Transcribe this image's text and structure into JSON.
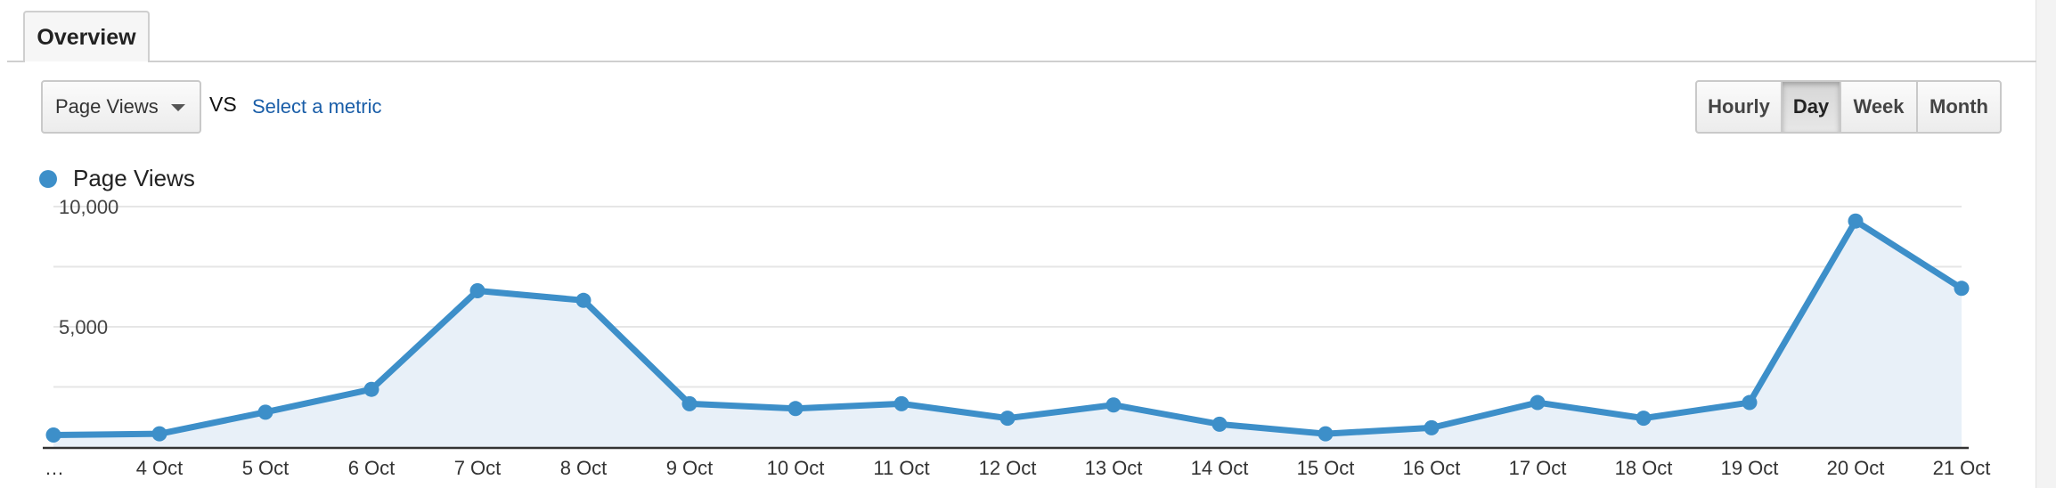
{
  "tab": {
    "label": "Overview"
  },
  "controls": {
    "metric_label": "Page Views",
    "vs_label": "VS",
    "select_metric_label": "Select a metric",
    "granularity": [
      "Hourly",
      "Day",
      "Week",
      "Month"
    ],
    "selected_granularity": "Day"
  },
  "colors": {
    "series": "#3d8fc9",
    "fill": "#e8f0f8",
    "link": "#1a5ea8"
  },
  "chart_data": {
    "type": "area",
    "title": "",
    "legend": [
      "Page Views"
    ],
    "legend_position": "top-left",
    "grid": true,
    "x": [
      "…",
      "4 Oct",
      "5 Oct",
      "6 Oct",
      "7 Oct",
      "8 Oct",
      "9 Oct",
      "10 Oct",
      "11 Oct",
      "12 Oct",
      "13 Oct",
      "14 Oct",
      "15 Oct",
      "16 Oct",
      "17 Oct",
      "18 Oct",
      "19 Oct",
      "20 Oct",
      "21 Oct"
    ],
    "series": [
      {
        "name": "Page Views",
        "values": [
          500,
          550,
          1450,
          2400,
          6500,
          6100,
          1800,
          1600,
          1800,
          1200,
          1750,
          950,
          550,
          800,
          1850,
          1200,
          1850,
          9400,
          6600
        ]
      }
    ],
    "ylim": [
      0,
      10000
    ],
    "y_ticks": [
      {
        "value": 5000,
        "label": "5,000"
      },
      {
        "value": 10000,
        "label": "10,000"
      }
    ]
  }
}
